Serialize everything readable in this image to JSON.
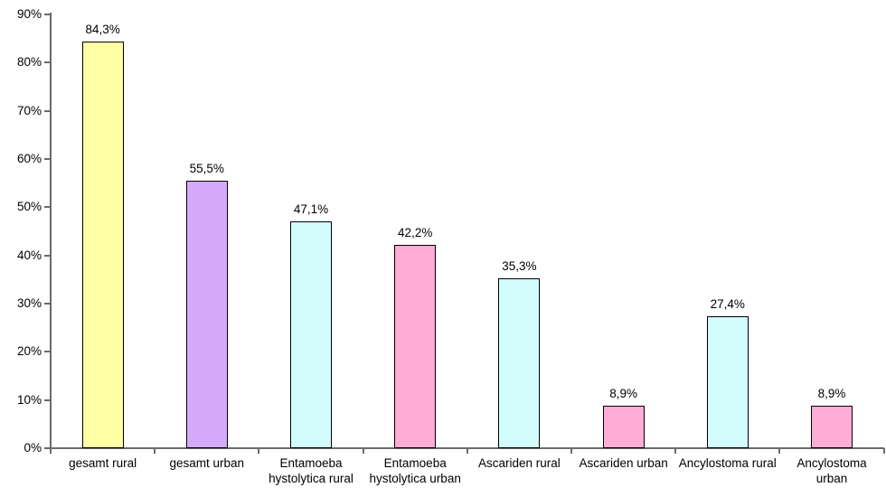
{
  "chart_data": {
    "type": "bar",
    "title": "",
    "xlabel": "",
    "ylabel": "",
    "categories": [
      "gesamt rural",
      "gesamt urban",
      "Entamoeba hystolytica rural",
      "Entamoeba hystolytica urban",
      "Ascariden rural",
      "Ascariden urban",
      "Ancylostoma rural",
      "Ancylostoma urban"
    ],
    "category_label_lines": [
      [
        "gesamt rural"
      ],
      [
        "gesamt urban"
      ],
      [
        "Entamoeba",
        "hystolytica rural"
      ],
      [
        "Entamoeba",
        "hystolytica urban"
      ],
      [
        "Ascariden rural"
      ],
      [
        "Ascariden urban"
      ],
      [
        "Ancylostoma rural"
      ],
      [
        "Ancylostoma",
        "urban"
      ]
    ],
    "values": [
      84.3,
      55.5,
      47.1,
      42.2,
      35.3,
      8.9,
      27.4,
      8.9
    ],
    "data_labels": [
      "84,3%",
      "55,5%",
      "47,1%",
      "42,2%",
      "35,3%",
      "8,9%",
      "27,4%",
      "8,9%"
    ],
    "bar_colors": [
      "#FFFFA6",
      "#D5AAFB",
      "#D3FCFC",
      "#FFACD6",
      "#D3FCFC",
      "#FFACD6",
      "#D3FCFC",
      "#FFACD6"
    ],
    "bar_border_color": "#000000",
    "axis_color": "#6b6b6b",
    "y_tick_labels": [
      "0%",
      "10%",
      "20%",
      "30%",
      "40%",
      "50%",
      "60%",
      "70%",
      "80%",
      "90%"
    ],
    "ylim": [
      0,
      90
    ],
    "grid": false,
    "legend": "none",
    "decimal_separator": ","
  }
}
